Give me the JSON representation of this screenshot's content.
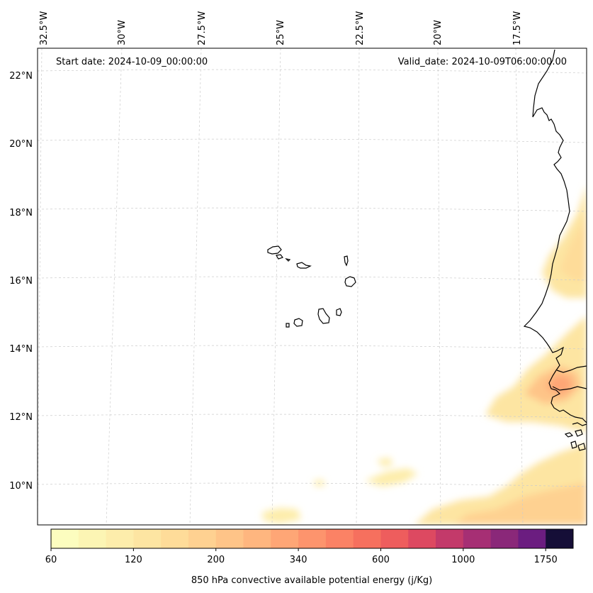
{
  "header": {
    "start_date": "Start date: 2024-10-09_00:00:00",
    "valid_date": "Valid_date: 2024-10-09T06:00:00.00"
  },
  "longitude_labels": [
    "32.5°W",
    "30°W",
    "27.5°W",
    "25°W",
    "22.5°W",
    "20°W",
    "17.5°W"
  ],
  "latitude_labels": [
    "22°N",
    "20°N",
    "18°N",
    "16°N",
    "14°N",
    "12°N",
    "10°N"
  ],
  "colorbar": {
    "label": "850 hPa convective available potential energy (j/Kg)",
    "tick_labels": [
      "60",
      "120",
      "200",
      "340",
      "600",
      "1000",
      "1750"
    ],
    "colors": [
      "#fcfdbf",
      "#fcf5b4",
      "#fdedab",
      "#fde5a2",
      "#fedc99",
      "#fed191",
      "#fec488",
      "#feb67f",
      "#fea676",
      "#fd946d",
      "#fb8265",
      "#f6705e",
      "#ee5d5d",
      "#dd4961",
      "#c33a6a",
      "#a62f74",
      "#8a2879",
      "#6b1d80",
      "#150e37"
    ]
  },
  "chart_data": {
    "type": "heatmap",
    "map_extent_lon": [
      -32.5,
      -15.5
    ],
    "map_extent_lat": [
      8.8,
      22.8
    ],
    "gridlines": true,
    "variable": "850 hPa convective available potential energy (j/Kg)"
  }
}
